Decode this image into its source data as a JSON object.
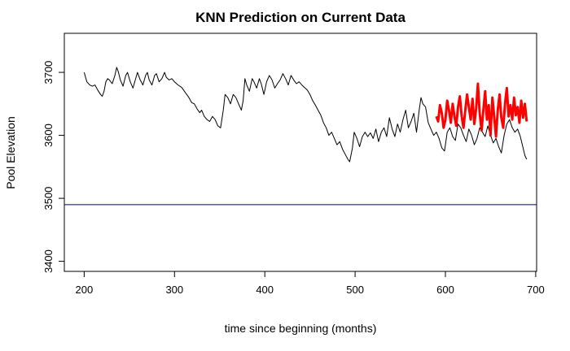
{
  "chart_data": {
    "type": "line",
    "title": "KNN Prediction on Current Data",
    "xlabel": "time since beginning (months)",
    "ylabel": "Pool Elevation",
    "xlim": [
      178,
      701
    ],
    "ylim": [
      3384,
      3762
    ],
    "x_ticks": [
      200,
      300,
      400,
      500,
      600,
      700
    ],
    "y_ticks": [
      3400,
      3500,
      3600,
      3700
    ],
    "grid": false,
    "legend": "none",
    "hline": {
      "y": 3490,
      "color": "#000080"
    },
    "series": [
      {
        "color": "#000000",
        "points": [
          [
            200,
            3700
          ],
          [
            203,
            3685
          ],
          [
            206,
            3680
          ],
          [
            209,
            3678
          ],
          [
            212,
            3680
          ],
          [
            215,
            3672
          ],
          [
            218,
            3665
          ],
          [
            220,
            3662
          ],
          [
            222,
            3670
          ],
          [
            224,
            3685
          ],
          [
            226,
            3690
          ],
          [
            228,
            3688
          ],
          [
            231,
            3682
          ],
          [
            234,
            3695
          ],
          [
            236,
            3708
          ],
          [
            238,
            3700
          ],
          [
            240,
            3688
          ],
          [
            243,
            3678
          ],
          [
            246,
            3695
          ],
          [
            248,
            3700
          ],
          [
            251,
            3685
          ],
          [
            254,
            3675
          ],
          [
            257,
            3690
          ],
          [
            259,
            3700
          ],
          [
            262,
            3688
          ],
          [
            265,
            3680
          ],
          [
            268,
            3695
          ],
          [
            270,
            3700
          ],
          [
            272,
            3688
          ],
          [
            275,
            3680
          ],
          [
            278,
            3695
          ],
          [
            280,
            3698
          ],
          [
            283,
            3685
          ],
          [
            286,
            3690
          ],
          [
            289,
            3700
          ],
          [
            291,
            3692
          ],
          [
            294,
            3688
          ],
          [
            297,
            3690
          ],
          [
            300,
            3685
          ],
          [
            304,
            3680
          ],
          [
            308,
            3676
          ],
          [
            312,
            3668
          ],
          [
            316,
            3660
          ],
          [
            319,
            3652
          ],
          [
            322,
            3650
          ],
          [
            325,
            3642
          ],
          [
            328,
            3636
          ],
          [
            330,
            3640
          ],
          [
            333,
            3630
          ],
          [
            336,
            3625
          ],
          [
            339,
            3622
          ],
          [
            342,
            3630
          ],
          [
            345,
            3625
          ],
          [
            348,
            3615
          ],
          [
            351,
            3612
          ],
          [
            354,
            3640
          ],
          [
            356,
            3665
          ],
          [
            359,
            3660
          ],
          [
            362,
            3650
          ],
          [
            365,
            3665
          ],
          [
            368,
            3660
          ],
          [
            371,
            3650
          ],
          [
            374,
            3640
          ],
          [
            376,
            3655
          ],
          [
            378,
            3690
          ],
          [
            380,
            3680
          ],
          [
            383,
            3670
          ],
          [
            386,
            3690
          ],
          [
            388,
            3685
          ],
          [
            391,
            3675
          ],
          [
            394,
            3690
          ],
          [
            396,
            3682
          ],
          [
            399,
            3665
          ],
          [
            402,
            3685
          ],
          [
            405,
            3695
          ],
          [
            408,
            3688
          ],
          [
            411,
            3675
          ],
          [
            414,
            3682
          ],
          [
            417,
            3688
          ],
          [
            420,
            3698
          ],
          [
            423,
            3690
          ],
          [
            426,
            3680
          ],
          [
            429,
            3695
          ],
          [
            432,
            3688
          ],
          [
            435,
            3682
          ],
          [
            438,
            3685
          ],
          [
            441,
            3680
          ],
          [
            444,
            3676
          ],
          [
            447,
            3672
          ],
          [
            450,
            3665
          ],
          [
            453,
            3655
          ],
          [
            456,
            3648
          ],
          [
            459,
            3640
          ],
          [
            462,
            3632
          ],
          [
            465,
            3620
          ],
          [
            468,
            3612
          ],
          [
            471,
            3600
          ],
          [
            474,
            3605
          ],
          [
            477,
            3595
          ],
          [
            480,
            3585
          ],
          [
            483,
            3590
          ],
          [
            486,
            3578
          ],
          [
            489,
            3570
          ],
          [
            492,
            3562
          ],
          [
            494,
            3558
          ],
          [
            497,
            3580
          ],
          [
            499,
            3605
          ],
          [
            502,
            3595
          ],
          [
            505,
            3582
          ],
          [
            508,
            3598
          ],
          [
            511,
            3605
          ],
          [
            514,
            3598
          ],
          [
            517,
            3604
          ],
          [
            520,
            3595
          ],
          [
            523,
            3610
          ],
          [
            526,
            3590
          ],
          [
            529,
            3605
          ],
          [
            532,
            3612
          ],
          [
            535,
            3598
          ],
          [
            538,
            3628
          ],
          [
            541,
            3610
          ],
          [
            544,
            3598
          ],
          [
            547,
            3618
          ],
          [
            550,
            3605
          ],
          [
            553,
            3625
          ],
          [
            556,
            3640
          ],
          [
            559,
            3612
          ],
          [
            562,
            3622
          ],
          [
            565,
            3635
          ],
          [
            568,
            3605
          ],
          [
            571,
            3640
          ],
          [
            573,
            3660
          ],
          [
            575,
            3650
          ],
          [
            578,
            3645
          ],
          [
            581,
            3620
          ],
          [
            584,
            3610
          ],
          [
            587,
            3600
          ],
          [
            590,
            3605
          ],
          [
            593,
            3595
          ],
          [
            596,
            3580
          ],
          [
            599,
            3575
          ],
          [
            602,
            3605
          ],
          [
            605,
            3612
          ],
          [
            608,
            3598
          ],
          [
            611,
            3592
          ],
          [
            614,
            3618
          ],
          [
            617,
            3612
          ],
          [
            620,
            3600
          ],
          [
            623,
            3590
          ],
          [
            626,
            3610
          ],
          [
            629,
            3600
          ],
          [
            632,
            3585
          ],
          [
            635,
            3595
          ],
          [
            638,
            3612
          ],
          [
            641,
            3605
          ],
          [
            644,
            3598
          ],
          [
            647,
            3615
          ],
          [
            650,
            3600
          ],
          [
            653,
            3588
          ],
          [
            656,
            3595
          ],
          [
            659,
            3582
          ],
          [
            662,
            3572
          ],
          [
            665,
            3600
          ],
          [
            668,
            3618
          ],
          [
            671,
            3625
          ],
          [
            674,
            3612
          ],
          [
            677,
            3605
          ],
          [
            680,
            3610
          ],
          [
            683,
            3598
          ],
          [
            686,
            3580
          ],
          [
            688,
            3568
          ],
          [
            690,
            3562
          ]
        ]
      },
      {
        "color": "#ff0000",
        "points": [
          [
            590,
            3630
          ],
          [
            592,
            3622
          ],
          [
            594,
            3648
          ],
          [
            596,
            3635
          ],
          [
            598,
            3612
          ],
          [
            600,
            3625
          ],
          [
            602,
            3655
          ],
          [
            604,
            3640
          ],
          [
            606,
            3620
          ],
          [
            608,
            3650
          ],
          [
            610,
            3630
          ],
          [
            612,
            3615
          ],
          [
            614,
            3645
          ],
          [
            616,
            3662
          ],
          [
            618,
            3630
          ],
          [
            620,
            3612
          ],
          [
            622,
            3640
          ],
          [
            624,
            3665
          ],
          [
            626,
            3645
          ],
          [
            628,
            3625
          ],
          [
            630,
            3658
          ],
          [
            632,
            3618
          ],
          [
            634,
            3642
          ],
          [
            636,
            3682
          ],
          [
            638,
            3635
          ],
          [
            640,
            3608
          ],
          [
            642,
            3640
          ],
          [
            644,
            3670
          ],
          [
            646,
            3625
          ],
          [
            648,
            3648
          ],
          [
            650,
            3600
          ],
          [
            652,
            3660
          ],
          [
            654,
            3630
          ],
          [
            656,
            3598
          ],
          [
            658,
            3640
          ],
          [
            660,
            3665
          ],
          [
            662,
            3628
          ],
          [
            664,
            3612
          ],
          [
            666,
            3650
          ],
          [
            668,
            3675
          ],
          [
            670,
            3630
          ],
          [
            672,
            3648
          ],
          [
            674,
            3625
          ],
          [
            676,
            3660
          ],
          [
            678,
            3632
          ],
          [
            680,
            3645
          ],
          [
            682,
            3620
          ],
          [
            684,
            3655
          ],
          [
            686,
            3628
          ],
          [
            688,
            3650
          ],
          [
            690,
            3622
          ]
        ]
      }
    ]
  }
}
